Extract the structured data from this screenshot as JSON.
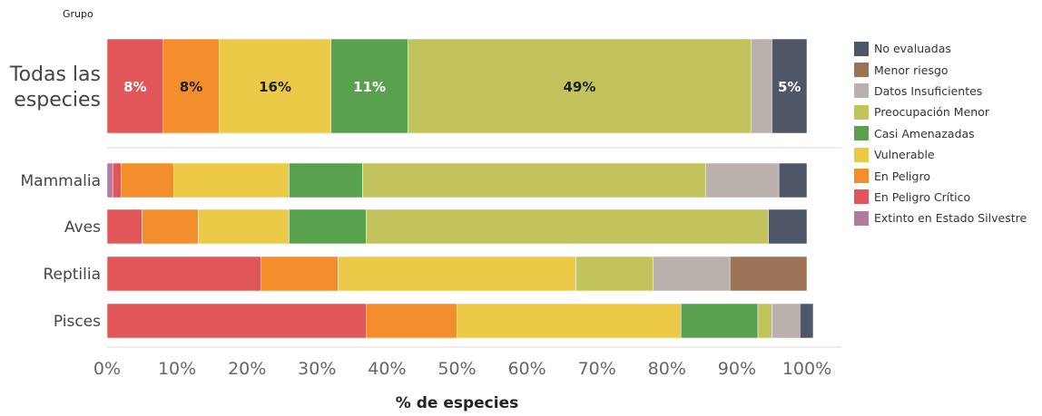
{
  "header": {
    "group_label": "Grupo"
  },
  "chart_data": {
    "type": "bar",
    "orientation": "horizontal",
    "stacked": true,
    "xlabel": "% de especies",
    "xlim": [
      0,
      100
    ],
    "xticks": [
      "0%",
      "10%",
      "20%",
      "30%",
      "40%",
      "50%",
      "60%",
      "70%",
      "80%",
      "90%",
      "100%"
    ],
    "grid": false,
    "legend_position": "right",
    "categories": [
      "Todas las especies",
      "Mammalia",
      "Aves",
      "Reptilia",
      "Pisces"
    ],
    "category_lines": [
      [
        "Todas las",
        "especies"
      ],
      [
        "Mammalia"
      ],
      [
        "Aves"
      ],
      [
        "Reptilia"
      ],
      [
        "Pisces"
      ]
    ],
    "series": [
      {
        "name": "Extinto en Estado Silvestre",
        "color": "#b07aa1",
        "values": [
          0,
          0.8,
          0,
          0,
          0
        ]
      },
      {
        "name": "En Peligro Crítico",
        "color": "#e15759",
        "values": [
          8,
          1.2,
          5,
          22,
          37
        ]
      },
      {
        "name": "En Peligro",
        "color": "#f28e2b",
        "values": [
          8,
          7.5,
          8,
          11,
          13
        ]
      },
      {
        "name": "Vulnerable",
        "color": "#edc948",
        "values": [
          16,
          16.5,
          13,
          34,
          32
        ]
      },
      {
        "name": "Casi Amenazadas",
        "color": "#59a14f",
        "values": [
          11,
          10.5,
          11,
          0,
          11
        ]
      },
      {
        "name": "Preocupación Menor",
        "color": "#c3c35e",
        "values": [
          49,
          49,
          57.5,
          11,
          2
        ]
      },
      {
        "name": "Datos Insuficientes",
        "color": "#bab0ac",
        "values": [
          3,
          10.5,
          0,
          11,
          4
        ]
      },
      {
        "name": "Menor riesgo",
        "color": "#9c7356",
        "values": [
          0,
          0,
          0,
          11,
          0
        ]
      },
      {
        "name": "No evaluadas",
        "color": "#4e5668",
        "values": [
          5,
          4,
          5.5,
          0,
          1.9
        ]
      }
    ],
    "data_labels": [
      {
        "category": "Todas las especies",
        "series": "En Peligro Crítico",
        "text": "8%",
        "text_color": "#ffffff"
      },
      {
        "category": "Todas las especies",
        "series": "En Peligro",
        "text": "8%",
        "text_color": "#222222"
      },
      {
        "category": "Todas las especies",
        "series": "Vulnerable",
        "text": "16%",
        "text_color": "#222222"
      },
      {
        "category": "Todas las especies",
        "series": "Casi Amenazadas",
        "text": "11%",
        "text_color": "#ffffff"
      },
      {
        "category": "Todas las especies",
        "series": "Preocupación Menor",
        "text": "49%",
        "text_color": "#222222"
      },
      {
        "category": "Todas las especies",
        "series": "No evaluadas",
        "text": "5%",
        "text_color": "#ffffff"
      }
    ],
    "legend_order": [
      "No evaluadas",
      "Menor riesgo",
      "Datos Insuficientes",
      "Preocupación Menor",
      "Casi Amenazadas",
      "Vulnerable",
      "En Peligro",
      "En Peligro Crítico",
      "Extinto en Estado Silvestre"
    ]
  }
}
